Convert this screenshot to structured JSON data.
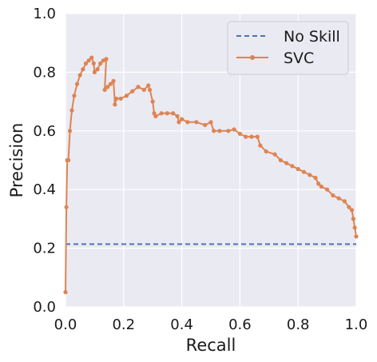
{
  "chart_data": {
    "type": "line",
    "xlabel": "Recall",
    "ylabel": "Precision",
    "xlim": [
      0.0,
      1.0
    ],
    "ylim": [
      0.0,
      1.0
    ],
    "grid": true,
    "legend_position": "top-right",
    "x_ticks": [
      "0.0",
      "0.2",
      "0.4",
      "0.6",
      "0.8",
      "1.0"
    ],
    "y_ticks": [
      "0.0",
      "0.2",
      "0.4",
      "0.6",
      "0.8",
      "1.0"
    ],
    "series": [
      {
        "name": "No Skill",
        "style": "dashed",
        "color": "#4c72b0",
        "x": [
          0.0,
          1.0
        ],
        "y": [
          0.214,
          0.214
        ]
      },
      {
        "name": "SVC",
        "style": "line-markers",
        "color": "#dd8452",
        "x": [
          0.0,
          0.003,
          0.006,
          0.01,
          0.015,
          0.022,
          0.03,
          0.04,
          0.05,
          0.06,
          0.07,
          0.08,
          0.09,
          0.097,
          0.1,
          0.11,
          0.12,
          0.13,
          0.14,
          0.135,
          0.145,
          0.155,
          0.165,
          0.17,
          0.175,
          0.19,
          0.21,
          0.23,
          0.25,
          0.27,
          0.285,
          0.29,
          0.3,
          0.305,
          0.31,
          0.33,
          0.35,
          0.37,
          0.385,
          0.39,
          0.4,
          0.42,
          0.45,
          0.48,
          0.5,
          0.51,
          0.53,
          0.56,
          0.58,
          0.6,
          0.62,
          0.64,
          0.66,
          0.67,
          0.69,
          0.72,
          0.74,
          0.76,
          0.78,
          0.8,
          0.82,
          0.84,
          0.86,
          0.87,
          0.88,
          0.9,
          0.92,
          0.94,
          0.96,
          0.975,
          0.985,
          0.99,
          0.995,
          1.0
        ],
        "y": [
          0.05,
          0.34,
          0.5,
          0.5,
          0.6,
          0.67,
          0.72,
          0.76,
          0.79,
          0.81,
          0.83,
          0.84,
          0.85,
          0.83,
          0.8,
          0.81,
          0.83,
          0.84,
          0.845,
          0.74,
          0.75,
          0.76,
          0.77,
          0.69,
          0.71,
          0.71,
          0.72,
          0.735,
          0.75,
          0.74,
          0.755,
          0.74,
          0.7,
          0.66,
          0.65,
          0.66,
          0.66,
          0.66,
          0.65,
          0.63,
          0.64,
          0.63,
          0.63,
          0.62,
          0.63,
          0.6,
          0.6,
          0.6,
          0.605,
          0.59,
          0.58,
          0.58,
          0.58,
          0.55,
          0.53,
          0.52,
          0.5,
          0.49,
          0.48,
          0.47,
          0.46,
          0.45,
          0.44,
          0.42,
          0.41,
          0.4,
          0.38,
          0.37,
          0.36,
          0.34,
          0.33,
          0.3,
          0.27,
          0.24
        ]
      }
    ]
  }
}
